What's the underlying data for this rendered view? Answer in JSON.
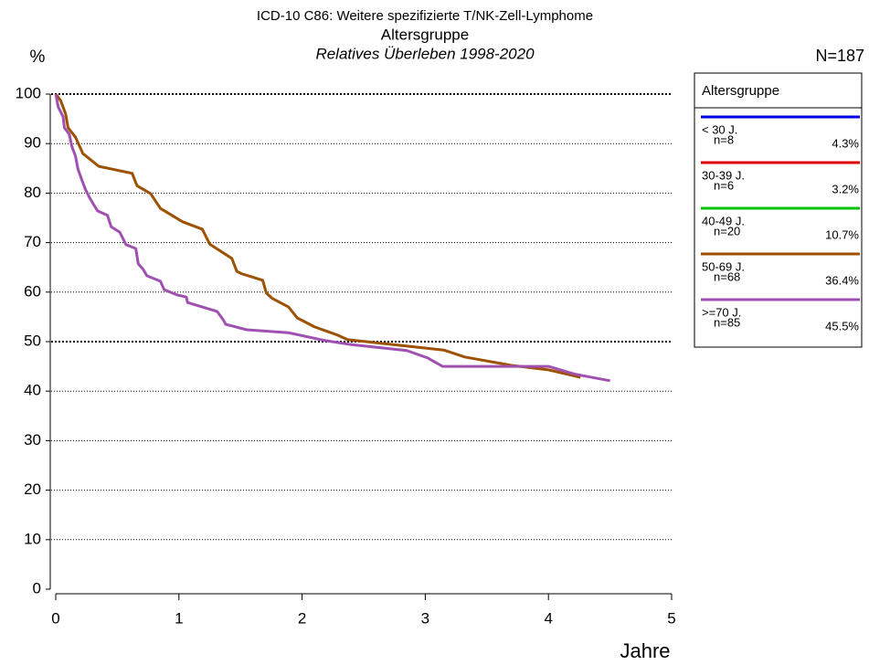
{
  "chart_data": {
    "type": "line",
    "title": "ICD-10 C86: Weitere spezifizierte T/NK-Zell-Lymphome",
    "subtitle": "Altersgruppe",
    "subtitle2": "Relatives Überleben 1998-2020",
    "y_label": "%",
    "x_label": "Jahre",
    "total_label": "N=187",
    "legend_title": "Altersgruppe",
    "xlim": [
      0,
      5
    ],
    "xticks": [
      0,
      1,
      2,
      3,
      4,
      5
    ],
    "ylim": [
      0,
      100
    ],
    "yticks": [
      0,
      10,
      20,
      30,
      40,
      50,
      60,
      70,
      80,
      90,
      100
    ],
    "grid": true,
    "grid_emphasis": [
      50,
      100
    ],
    "series": [
      {
        "name": "< 30 J.",
        "n_label": "n=8",
        "share_label": "4.3%",
        "color": "#0000e0",
        "x": [],
        "values": []
      },
      {
        "name": "30-39 J.",
        "n_label": "n=6",
        "share_label": "3.2%",
        "color": "#e00000",
        "x": [],
        "values": []
      },
      {
        "name": "40-49 J.",
        "n_label": "n=20",
        "share_label": "10.7%",
        "color": "#00c000",
        "x": [],
        "values": []
      },
      {
        "name": "50-69 J.",
        "n_label": "n=68",
        "share_label": "36.4%",
        "color": "#9c5200",
        "x": [
          0,
          0.04,
          0.08,
          0.1,
          0.16,
          0.22,
          0.35,
          0.62,
          0.66,
          0.77,
          0.85,
          1.03,
          1.19,
          1.25,
          1.43,
          1.47,
          1.51,
          1.68,
          1.71,
          1.76,
          1.89,
          1.96,
          2.1,
          2.29,
          2.37,
          2.74,
          3.15,
          3.32,
          3.7,
          4.0,
          4.26
        ],
        "values": [
          100,
          98.7,
          96,
          93.2,
          91.3,
          88,
          85.4,
          84,
          81.5,
          79.9,
          76.9,
          74.2,
          72.7,
          69.7,
          66.8,
          64.2,
          63.7,
          62.4,
          59.8,
          58.7,
          57,
          54.8,
          53,
          51.3,
          50.4,
          49.4,
          48.3,
          46.9,
          45.2,
          44.3,
          42.8
        ]
      },
      {
        "name": ">=70 J.",
        "n_label": "n=85",
        "share_label": "45.5%",
        "color": "#a050b0",
        "x": [
          0,
          0.02,
          0.06,
          0.07,
          0.11,
          0.13,
          0.16,
          0.18,
          0.21,
          0.24,
          0.27,
          0.3,
          0.34,
          0.42,
          0.45,
          0.52,
          0.57,
          0.65,
          0.67,
          0.71,
          0.74,
          0.85,
          0.88,
          0.99,
          1.06,
          1.07,
          1.31,
          1.36,
          1.38,
          1.55,
          1.89,
          2.19,
          2.4,
          2.85,
          3.02,
          3.14,
          3.78,
          4.0,
          4.22,
          4.5
        ],
        "values": [
          100,
          97.4,
          95.4,
          93.2,
          91.9,
          89.5,
          87.5,
          84.9,
          82.8,
          80.8,
          79.3,
          78,
          76.4,
          75.5,
          73.2,
          72.1,
          69.6,
          68.8,
          65.7,
          64.6,
          63.3,
          62.2,
          60.5,
          59.4,
          59,
          57.9,
          56.1,
          54.4,
          53.5,
          52.4,
          51.8,
          50.2,
          49.4,
          48.2,
          46.7,
          45,
          45,
          45,
          43.4,
          42.1
        ]
      }
    ]
  }
}
